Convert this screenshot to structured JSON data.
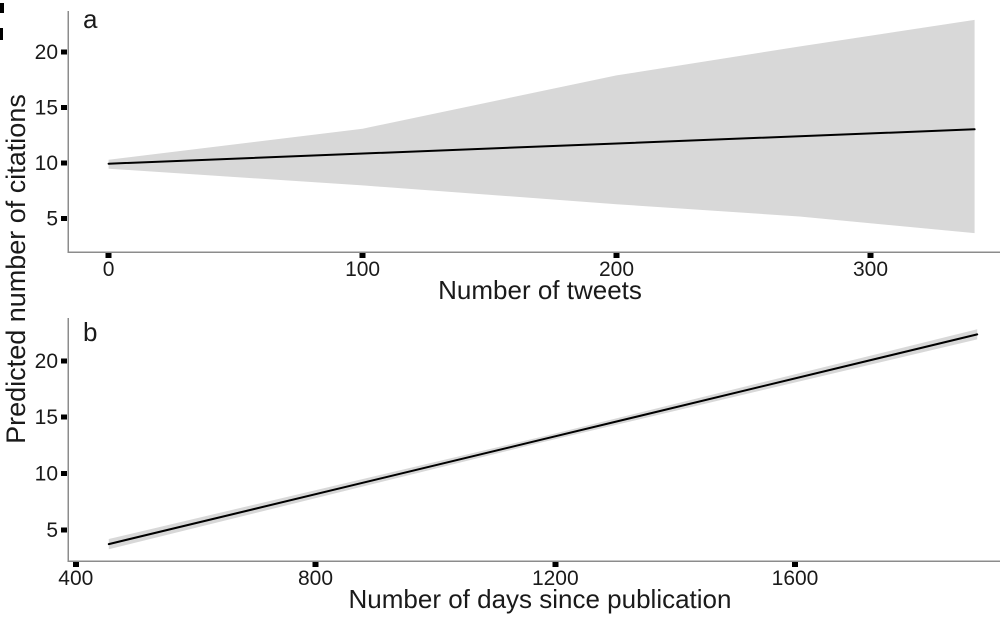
{
  "chart_data": {
    "type": "line",
    "title": "",
    "shared_ylabel": "Predicted number of citations",
    "legend": "none",
    "grid": false,
    "style": {
      "band_color": "#d8d8d8",
      "line_color": "#000000",
      "axis_color": "#8c8c8c",
      "tick_color": "#000000",
      "text_color": "#1a1a1a"
    },
    "panels": [
      {
        "panel_label": "a",
        "xlabel": "Number of tweets",
        "ylabel": "Predicted number of citations",
        "xlim": [
          -16,
          351
        ],
        "ylim": [
          2.0,
          23.7
        ],
        "xticks": [
          0,
          100,
          200,
          300
        ],
        "yticks": [
          5,
          10,
          15,
          20
        ],
        "fit_line": {
          "x": [
            0,
            170,
            341
          ],
          "y": [
            9.95,
            11.5,
            13.05
          ]
        },
        "ci_band": {
          "x": [
            0,
            100,
            200,
            272,
            341
          ],
          "upper": [
            10.3,
            13.1,
            17.9,
            20.5,
            22.9
          ],
          "lower": [
            9.5,
            8.0,
            6.3,
            5.2,
            3.7
          ]
        }
      },
      {
        "panel_label": "b",
        "xlabel": "Number of days since publication",
        "ylabel": "Predicted number of citations",
        "xlim": [
          387,
          1942
        ],
        "ylim": [
          2.25,
          23.8
        ],
        "xticks": [
          400,
          800,
          1200,
          1600
        ],
        "yticks": [
          5,
          10,
          15,
          20
        ],
        "fit_line": {
          "x": [
            455,
            1180,
            1904
          ],
          "y": [
            3.75,
            13.05,
            22.35
          ]
        },
        "ci_band": {
          "x": [
            455,
            1180,
            1904
          ],
          "upper": [
            4.2,
            13.3,
            22.8
          ],
          "lower": [
            3.3,
            12.8,
            21.9
          ]
        }
      }
    ]
  }
}
